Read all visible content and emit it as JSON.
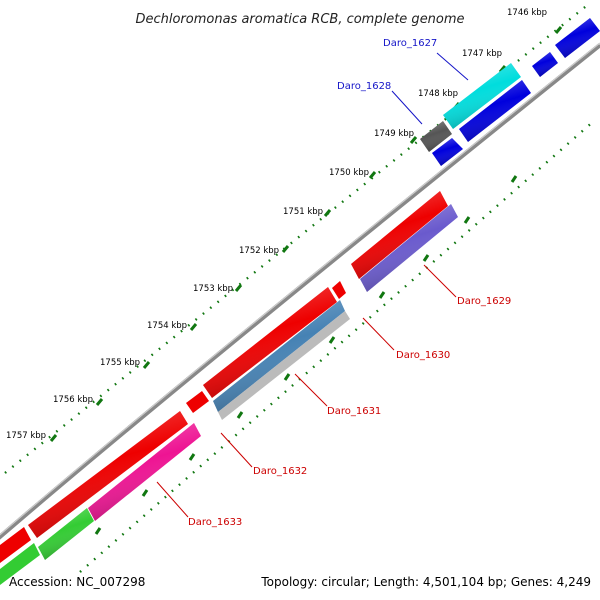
{
  "title": "Dechloromonas aromatica RCB, complete genome",
  "footer": {
    "accession": "Accession: NC_007298",
    "summary": "Topology: circular; Length: 4,501,104 bp; Genes: 4,249"
  },
  "ticks": [
    "1746 kbp",
    "1747 kbp",
    "1748 kbp",
    "1749 kbp",
    "1750 kbp",
    "1751 kbp",
    "1752 kbp",
    "1753 kbp",
    "1754 kbp",
    "1755 kbp",
    "1756 kbp",
    "1757 kbp"
  ],
  "gene_labels": [
    {
      "name": "Daro_1627",
      "color": "#1515c8"
    },
    {
      "name": "Daro_1628",
      "color": "#1515c8"
    },
    {
      "name": "Daro_1629",
      "color": "#cc0000"
    },
    {
      "name": "Daro_1630",
      "color": "#cc0000"
    },
    {
      "name": "Daro_1631",
      "color": "#cc0000"
    },
    {
      "name": "Daro_1632",
      "color": "#cc0000"
    },
    {
      "name": "Daro_1633",
      "color": "#cc0000"
    }
  ],
  "colors": {
    "backbone": "#888888",
    "tick_dots": "#117711",
    "red": "#ee0000",
    "blue": "#0000dd",
    "cyan": "#00dddd",
    "dark_gray": "#555555",
    "purple": "#6a5acd",
    "steel_blue": "#4682b4",
    "silver": "#bbbbbb",
    "magenta": "#ee1493",
    "green": "#33cc33"
  }
}
